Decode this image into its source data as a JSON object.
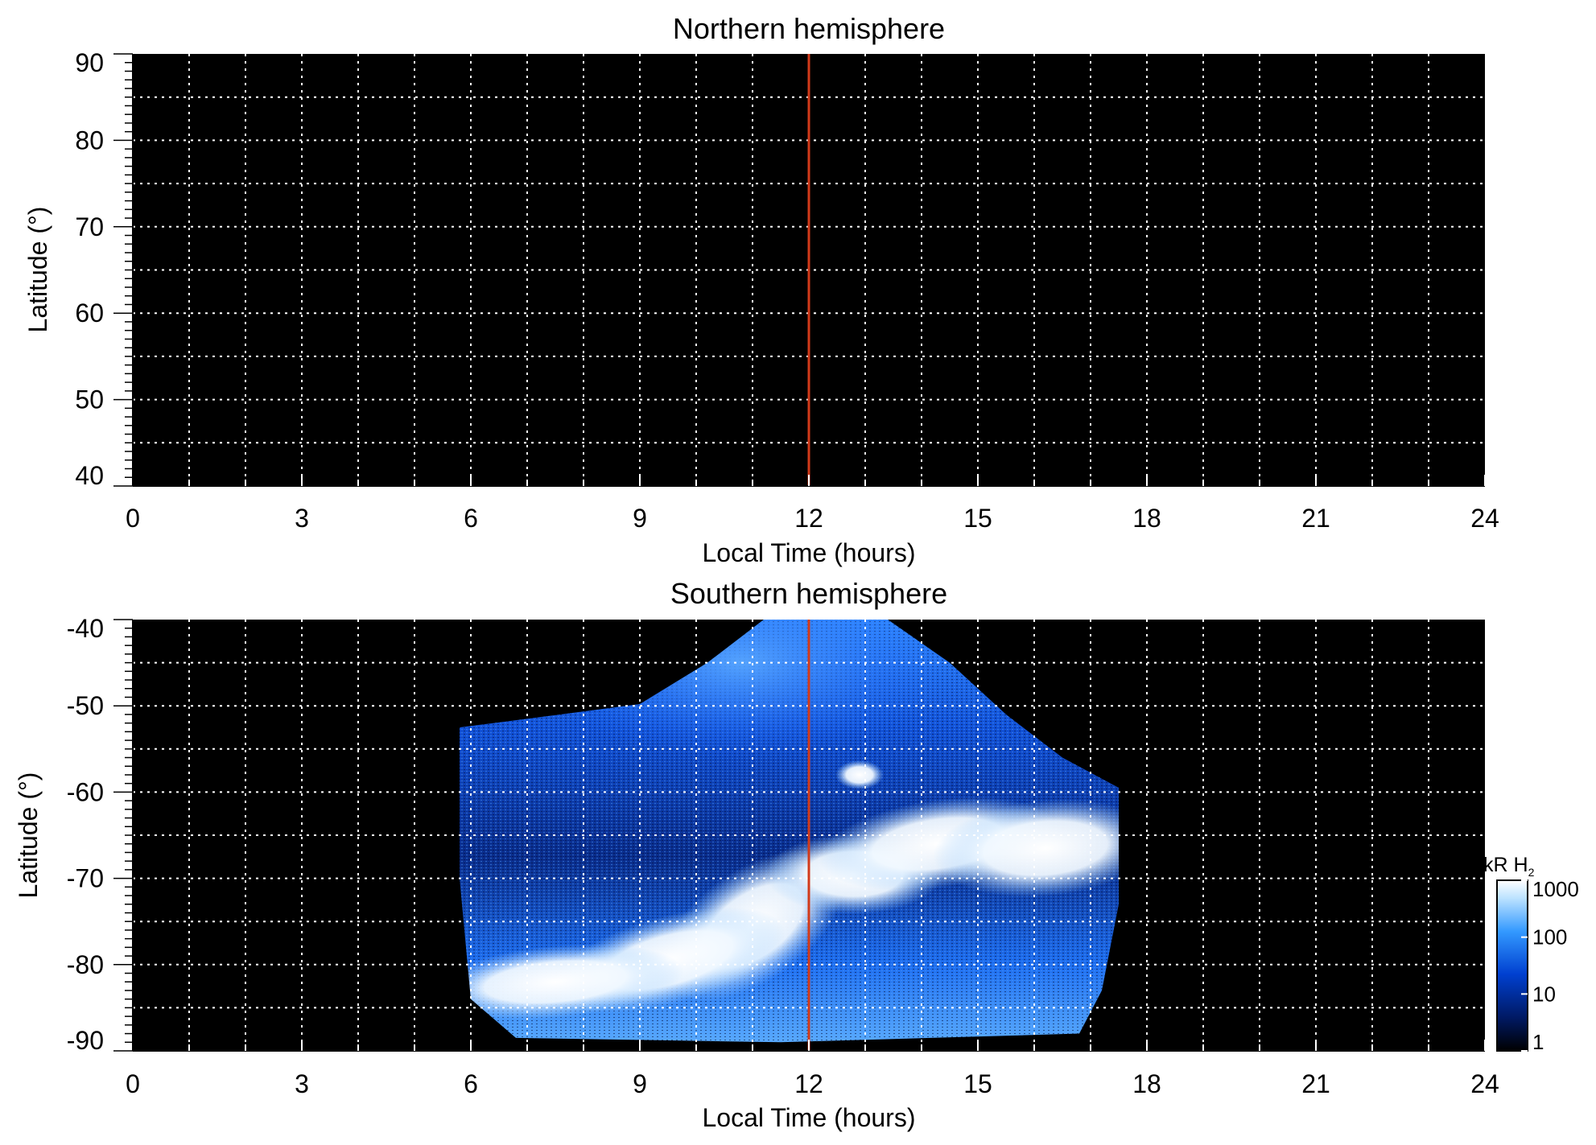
{
  "chart_data": [
    {
      "type": "heatmap",
      "title": "Northern hemisphere",
      "xlabel": "Local Time (hours)",
      "ylabel": "Latitude (°)",
      "xlim": [
        0,
        24
      ],
      "ylim": [
        40,
        90
      ],
      "x_ticks": [
        "0",
        "3",
        "6",
        "9",
        "12",
        "15",
        "18",
        "21",
        "24"
      ],
      "y_ticks": [
        "90",
        "80",
        "70",
        "60",
        "50",
        "40"
      ],
      "grid": true,
      "background": "#000000",
      "reference_line": {
        "x": 12,
        "color": "#d23a1a"
      },
      "emission": "none"
    },
    {
      "type": "heatmap",
      "title": "Southern hemisphere",
      "xlabel": "Local Time (hours)",
      "ylabel": "Latitude (°)",
      "xlim": [
        0,
        24
      ],
      "ylim": [
        -90,
        -40
      ],
      "x_ticks": [
        "0",
        "3",
        "6",
        "9",
        "12",
        "15",
        "18",
        "21",
        "24"
      ],
      "y_ticks": [
        "-40",
        "-50",
        "-60",
        "-70",
        "-80",
        "-90"
      ],
      "grid": true,
      "background": "#000000",
      "reference_line": {
        "x": 12,
        "color": "#d23a1a"
      },
      "coverage_boundary": [
        [
          5.8,
          -52.5
        ],
        [
          7.0,
          -51.5
        ],
        [
          9.0,
          -49.8
        ],
        [
          10.2,
          -45
        ],
        [
          11.2,
          -40
        ],
        [
          13.4,
          -40
        ],
        [
          14.5,
          -45
        ],
        [
          15.5,
          -51
        ],
        [
          16.5,
          -56
        ],
        [
          17.5,
          -59.5
        ],
        [
          17.5,
          -73
        ],
        [
          17.2,
          -83
        ],
        [
          16.8,
          -88
        ],
        [
          11.5,
          -89
        ],
        [
          6.8,
          -88.5
        ],
        [
          6.0,
          -84
        ],
        [
          5.8,
          -70
        ]
      ],
      "bright_regions": [
        {
          "x": 11.0,
          "y": -75.5,
          "level": 1000
        },
        {
          "x": 9.5,
          "y": -79.5,
          "level": 1000
        },
        {
          "x": 7.5,
          "y": -82,
          "level": 1000
        },
        {
          "x": 12.8,
          "y": -69.5,
          "level": 1000
        },
        {
          "x": 14.3,
          "y": -66,
          "level": 1000
        },
        {
          "x": 16.2,
          "y": -66.5,
          "level": 1000
        },
        {
          "x": 12.9,
          "y": -58,
          "level": 1000
        },
        {
          "x": 10.8,
          "y": -45,
          "level": 200
        }
      ],
      "colorbar": {
        "label": "kR H",
        "label_subscript": "2",
        "scale": "log",
        "ticks": [
          "1000",
          "100",
          "10",
          "1"
        ],
        "range": [
          1,
          1000
        ],
        "colors": [
          "#000000",
          "#001a66",
          "#0040d0",
          "#3399ff",
          "#bfe4ff",
          "#ffffff"
        ]
      }
    }
  ]
}
